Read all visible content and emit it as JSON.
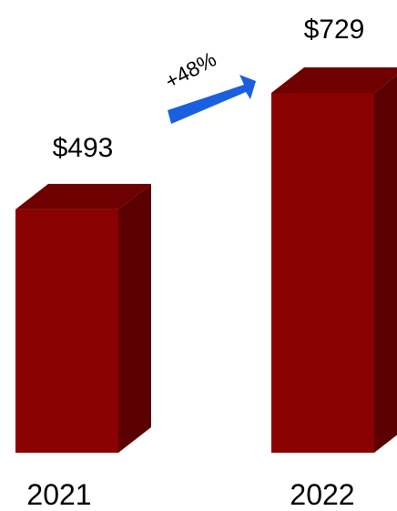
{
  "chart_data": {
    "type": "bar",
    "title": "",
    "xlabel": "",
    "ylabel": "",
    "categories": [
      "2021",
      "2022"
    ],
    "values": [
      493,
      729
    ],
    "data_labels": [
      "$493",
      "$729"
    ],
    "growth_label": "+48%",
    "ylim": [
      0,
      729
    ],
    "grid": false,
    "bar_style": "3d",
    "colors": {
      "bar_front": "#8b0000",
      "bar_top": "#6e0000",
      "bar_side": "#5a0000",
      "arrow": "#1a5fe0"
    }
  }
}
